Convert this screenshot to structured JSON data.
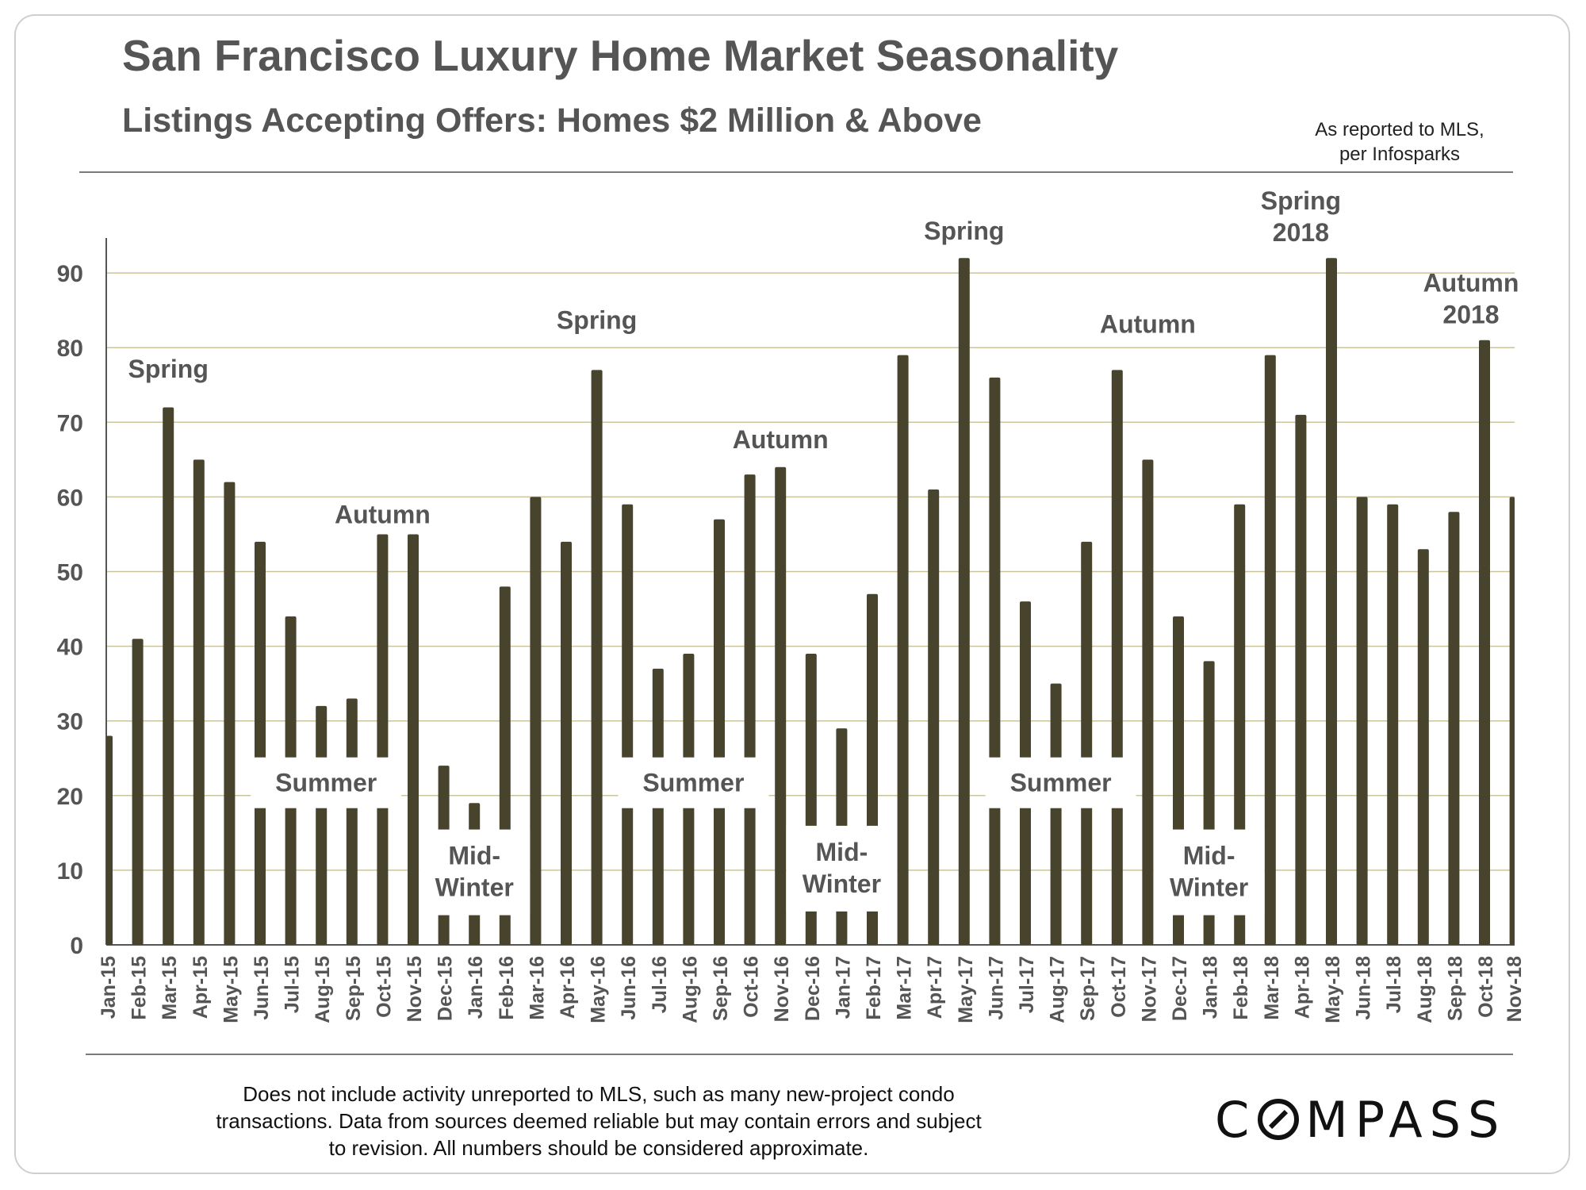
{
  "header": {
    "title": "San Francisco Luxury Home Market Seasonality",
    "subtitle": "Listings Accepting Offers: Homes $2 Million & Above",
    "source_line1": "As reported to MLS,",
    "source_line2": "per Infosparks"
  },
  "footer": {
    "disclaimer_line1": "Does not include activity unreported to MLS, such as many new-project condo",
    "disclaimer_line2": "transactions. Data from sources deemed reliable but may contain errors and subject",
    "disclaimer_line3": "to revision.  All numbers should be considered approximate.",
    "logo_prefix": "C",
    "logo_suffix": "MPASS"
  },
  "colors": {
    "bar": "#47432d",
    "grid": "#c9c49b",
    "axis_text": "#555555",
    "annotation_text": "#555555"
  },
  "chart_data": {
    "type": "bar",
    "title": "Listings Accepting Offers: Homes $2 Million & Above",
    "xlabel": "",
    "ylabel": "",
    "ylim": [
      0,
      95
    ],
    "yticks": [
      0,
      10,
      20,
      30,
      40,
      50,
      60,
      70,
      80,
      90
    ],
    "grid": true,
    "categories": [
      "Jan-15",
      "Feb-15",
      "Mar-15",
      "Apr-15",
      "May-15",
      "Jun-15",
      "Jul-15",
      "Aug-15",
      "Sep-15",
      "Oct-15",
      "Nov-15",
      "Dec-15",
      "Jan-16",
      "Feb-16",
      "Mar-16",
      "Apr-16",
      "May-16",
      "Jun-16",
      "Jul-16",
      "Aug-16",
      "Sep-16",
      "Oct-16",
      "Nov-16",
      "Dec-16",
      "Jan-17",
      "Feb-17",
      "Mar-17",
      "Apr-17",
      "May-17",
      "Jun-17",
      "Jul-17",
      "Aug-17",
      "Sep-17",
      "Oct-17",
      "Nov-17",
      "Dec-17",
      "Jan-18",
      "Feb-18",
      "Mar-18",
      "Apr-18",
      "May-18",
      "Jun-18",
      "Jul-18",
      "Aug-18",
      "Sep-18",
      "Oct-18",
      "Nov-18"
    ],
    "values": [
      28,
      41,
      72,
      65,
      62,
      54,
      44,
      32,
      33,
      55,
      55,
      24,
      19,
      48,
      60,
      54,
      77,
      59,
      37,
      39,
      57,
      63,
      64,
      39,
      29,
      47,
      79,
      61,
      92,
      76,
      46,
      35,
      54,
      77,
      65,
      44,
      38,
      59,
      79,
      71,
      92,
      60,
      59,
      53,
      58,
      81,
      60
    ],
    "annotations": [
      {
        "text": "Spring",
        "category": "Mar-15",
        "y": 76,
        "boxed": false
      },
      {
        "text": "Autumn",
        "category": "Oct-15",
        "y": 56.5,
        "boxed": false
      },
      {
        "text": "Spring",
        "category": "May-16",
        "y": 82.5,
        "boxed": false
      },
      {
        "text": "Autumn",
        "category": "Nov-16",
        "y": 66.5,
        "boxed": false
      },
      {
        "text": "Spring",
        "category": "May-17",
        "y": 94.5,
        "boxed": false
      },
      {
        "text": "Autumn",
        "category": "Nov-17",
        "y": 82,
        "boxed": false
      },
      {
        "text": "Spring",
        "text2": "2018",
        "category": "Apr-18",
        "y": 98.5,
        "boxed": false
      },
      {
        "text": "Autumn",
        "text2": "2018",
        "category": "Oct-18",
        "y": 87.5,
        "boxed": false
      },
      {
        "text": "Summer",
        "category": "Aug-15",
        "y": 21.5,
        "boxed": true
      },
      {
        "text": "Summer",
        "category": "Aug-16",
        "y": 21.5,
        "boxed": true
      },
      {
        "text": "Summer",
        "category": "Aug-17",
        "y": 21.5,
        "boxed": true
      },
      {
        "text": "Mid-",
        "text2": "Winter",
        "category": "Jan-16",
        "y": 9.5,
        "boxed": true
      },
      {
        "text": "Mid-",
        "text2": "Winter",
        "category": "Jan-17",
        "y": 10,
        "boxed": true
      },
      {
        "text": "Mid-",
        "text2": "Winter",
        "category": "Jan-18",
        "y": 9.5,
        "boxed": true
      }
    ]
  }
}
